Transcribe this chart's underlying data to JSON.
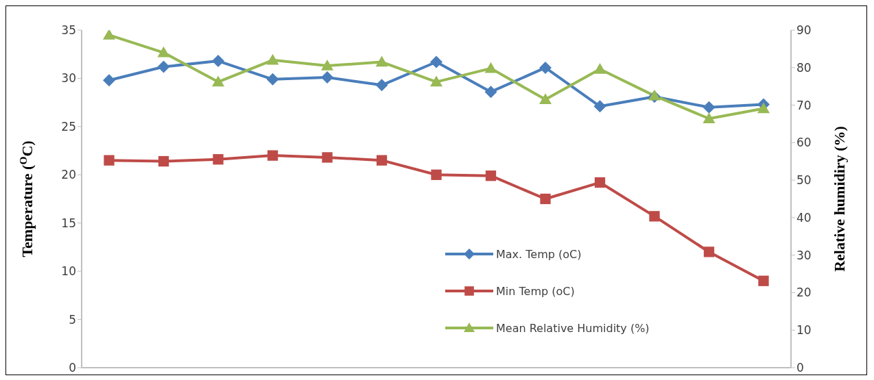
{
  "chart_data": {
    "type": "line",
    "xlabel": null,
    "ylabel": "Temperature ($^{O}$C)",
    "y2label": "Relative humidiry (%)",
    "categories": [
      null,
      null,
      null,
      null,
      null,
      null,
      null,
      null,
      null,
      null,
      null,
      null,
      null
    ],
    "series": [
      {
        "name": "Max. Temp (oC)",
        "color": "#4a7ebb",
        "marker": "diamond",
        "values": [
          29.8,
          31.2,
          31.8,
          29.9,
          30.1,
          29.3,
          31.7,
          28.6,
          31.1,
          27.1,
          28.1,
          27.0,
          27.3
        ]
      },
      {
        "name": "Min Temp (oC)",
        "color": "#be4b48",
        "marker": "square",
        "values": [
          21.5,
          21.4,
          21.6,
          22.0,
          21.8,
          21.5,
          20.0,
          19.9,
          17.5,
          19.2,
          15.7,
          12.0,
          9.0
        ]
      },
      {
        "name": "Mean Relative Humidity (%)",
        "color": "#98b954",
        "marker": "triangle",
        "axis": "y2",
        "values": [
          88.7,
          84.0,
          76.2,
          82.0,
          80.5,
          81.5,
          76.2,
          79.8,
          71.5,
          79.6,
          72.5,
          66.4,
          69.1
        ]
      }
    ],
    "ylim": [
      0,
      35
    ],
    "yticks": [
      0,
      5,
      10,
      15,
      20,
      25,
      30,
      35
    ],
    "y2lim": [
      0,
      90
    ],
    "y2ticks": [
      0,
      10,
      20,
      30,
      40,
      50,
      60,
      70,
      80,
      90
    ],
    "tick_labels": "y",
    "legend": "bottom right"
  }
}
